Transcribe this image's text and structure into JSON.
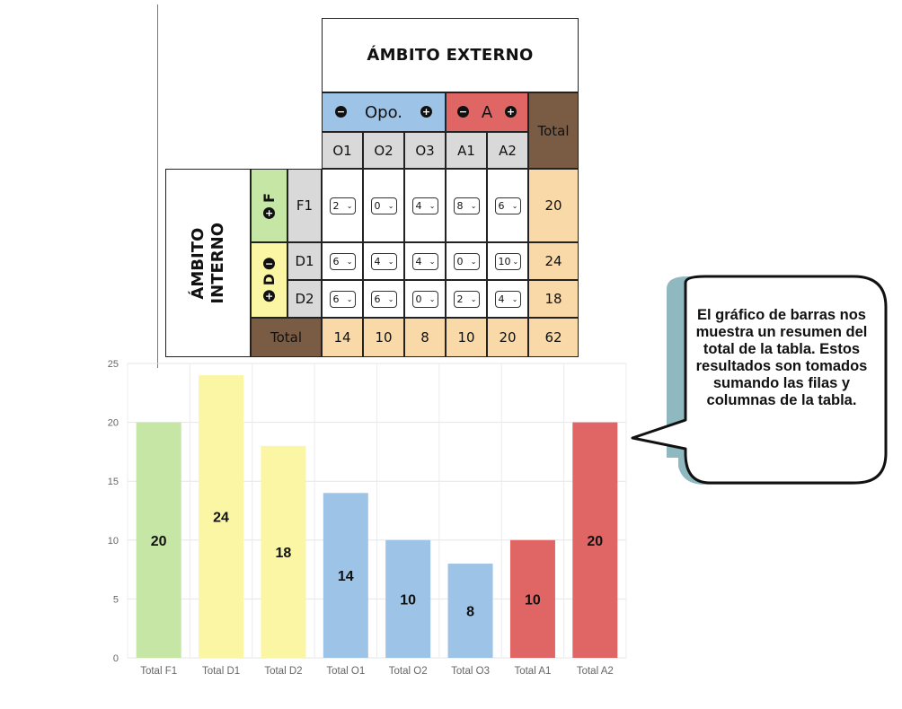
{
  "table": {
    "external_title": "ÁMBITO EXTERNO",
    "internal_title_line1": "ÁMBITO",
    "internal_title_line2": "INTERNO",
    "opo_label": "Opo.",
    "a_label": "A",
    "f_label": "F",
    "d_label": "D",
    "total_header": "Total",
    "columns": [
      "O1",
      "O2",
      "O3",
      "A1",
      "A2"
    ],
    "rows": [
      {
        "label": "F1",
        "values": [
          "2",
          "0",
          "4",
          "8",
          "6"
        ],
        "total": "20"
      },
      {
        "label": "D1",
        "values": [
          "6",
          "4",
          "4",
          "0",
          "10"
        ],
        "total": "24"
      },
      {
        "label": "D2",
        "values": [
          "6",
          "6",
          "0",
          "2",
          "4"
        ],
        "total": "18"
      }
    ],
    "total_row_label": "Total",
    "column_totals": [
      "14",
      "10",
      "8",
      "10",
      "20"
    ],
    "grand_total": "62",
    "colors": {
      "opportunities": "#9dc3e6",
      "threats": "#e06666",
      "strengths": "#c5e6a5",
      "weaknesses": "#fbf6a4",
      "totals": "#f9d9a8",
      "total_header": "#7a5c45"
    }
  },
  "chart_data": {
    "type": "bar",
    "categories": [
      "Total F1",
      "Total D1",
      "Total D2",
      "Total O1",
      "Total O2",
      "Total O3",
      "Total A1",
      "Total A2"
    ],
    "values": [
      20,
      24,
      18,
      14,
      10,
      8,
      10,
      20
    ],
    "colors": [
      "#c5e6a5",
      "#fbf6a4",
      "#fbf6a4",
      "#9dc3e6",
      "#9dc3e6",
      "#9dc3e6",
      "#e06666",
      "#e06666"
    ],
    "data_labels": [
      "20",
      "24",
      "18",
      "14",
      "10",
      "8",
      "10",
      "20"
    ],
    "yticks": [
      0,
      5,
      10,
      15,
      20,
      25
    ],
    "ylim": [
      0,
      25
    ],
    "grid": true,
    "title": "",
    "xlabel": "",
    "ylabel": ""
  },
  "callout": {
    "text": "El gráfico de barras nos muestra un resumen del total de la tabla. Estos resultados son tomados sumando las filas y columnas de la tabla."
  }
}
